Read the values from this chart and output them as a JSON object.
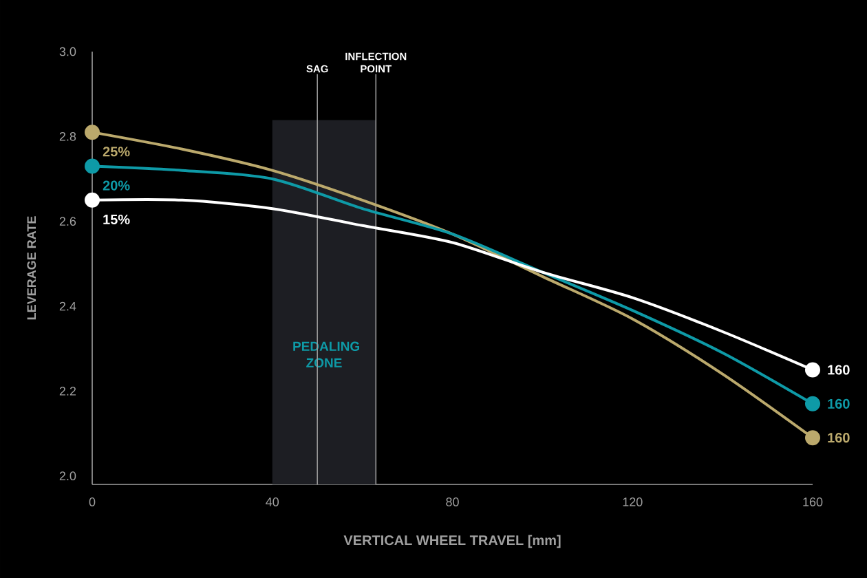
{
  "chart_data": {
    "type": "line",
    "xlabel": "VERTICAL WHEEL TRAVEL [mm]",
    "ylabel": "LEVERAGE RATE",
    "x": [
      0,
      20,
      40,
      60,
      80,
      100,
      120,
      140,
      160
    ],
    "xlim": [
      0,
      160
    ],
    "xticks": [
      0,
      40,
      80,
      120,
      160
    ],
    "ylim": [
      1.98,
      3.0
    ],
    "yticks": [
      {
        "value": 2,
        "label": "2.0"
      },
      2.2,
      2.4,
      2.6,
      2.8,
      {
        "value": 3,
        "label": "3.0"
      }
    ],
    "line_style": "solid",
    "series": [
      {
        "name": "25%",
        "color": "#bba96c",
        "values": [
          2.81,
          2.77,
          2.72,
          2.65,
          2.57,
          2.47,
          2.37,
          2.24,
          2.09
        ]
      },
      {
        "name": "20%",
        "color": "#0e9aa7",
        "values": [
          2.73,
          2.72,
          2.7,
          2.63,
          2.57,
          2.48,
          2.39,
          2.29,
          2.17
        ]
      },
      {
        "name": "15%",
        "color": "#ffffff",
        "values": [
          2.65,
          2.65,
          2.63,
          2.59,
          2.55,
          2.48,
          2.42,
          2.34,
          2.25
        ]
      }
    ],
    "ref_lines": [
      {
        "axis": "x",
        "value": 50,
        "label": "SAG",
        "color": "#9a9a9a"
      },
      {
        "axis": "x",
        "value": 63,
        "label": "INFLECTION POINT",
        "color": "#9a9a9a"
      }
    ],
    "bands": [
      {
        "axis": "x",
        "from": 40,
        "to": 63,
        "label": "PEDALING ZONE",
        "color": "#1d1e23"
      }
    ],
    "annotations": [
      "160",
      "160",
      "160"
    ]
  }
}
